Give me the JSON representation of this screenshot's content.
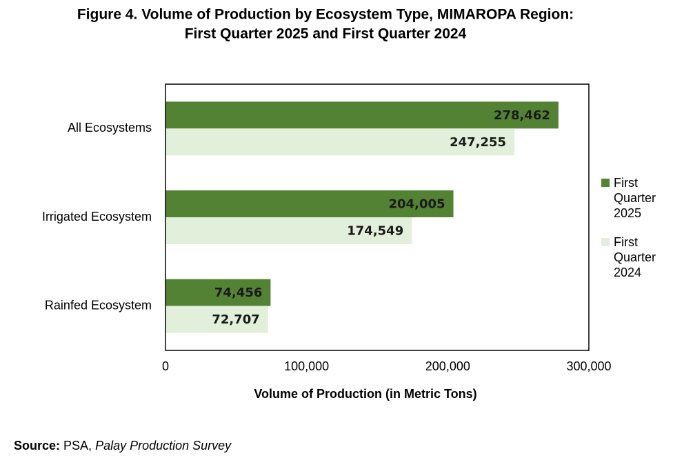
{
  "chart_data": {
    "type": "hbar",
    "title": [
      "Figure 4. Volume of Production by Ecosystem Type, MIMAROPA Region:",
      "First Quarter 2025 and First Quarter 2024"
    ],
    "categories": [
      "All Ecosystems",
      "Irrigated Ecosystem",
      "Rainfed Ecosystem"
    ],
    "series": [
      {
        "name": "First Quarter 2025",
        "color": "#548235",
        "values": [
          278462,
          204005,
          74456
        ],
        "value_labels": [
          "278,462",
          "204,005",
          "74,456"
        ]
      },
      {
        "name": "First Quarter 2024",
        "color": "#e2efda",
        "values": [
          247255,
          174549,
          72707
        ],
        "value_labels": [
          "247,255",
          "174,549",
          "72,707"
        ]
      }
    ],
    "xlim": [
      0,
      300000
    ],
    "xticks": [
      0,
      {
        "value": 100000,
        "label": "100,000"
      },
      {
        "value": 200000,
        "label": "200,000"
      },
      {
        "value": 300000,
        "label": "300,000"
      }
    ],
    "xlabel": "Volume of Production (in Metric Tons)",
    "legend": "right",
    "grid": false
  },
  "source": {
    "label": "Source:",
    "text": " PSA, ",
    "survey": "Palay Production Survey"
  }
}
